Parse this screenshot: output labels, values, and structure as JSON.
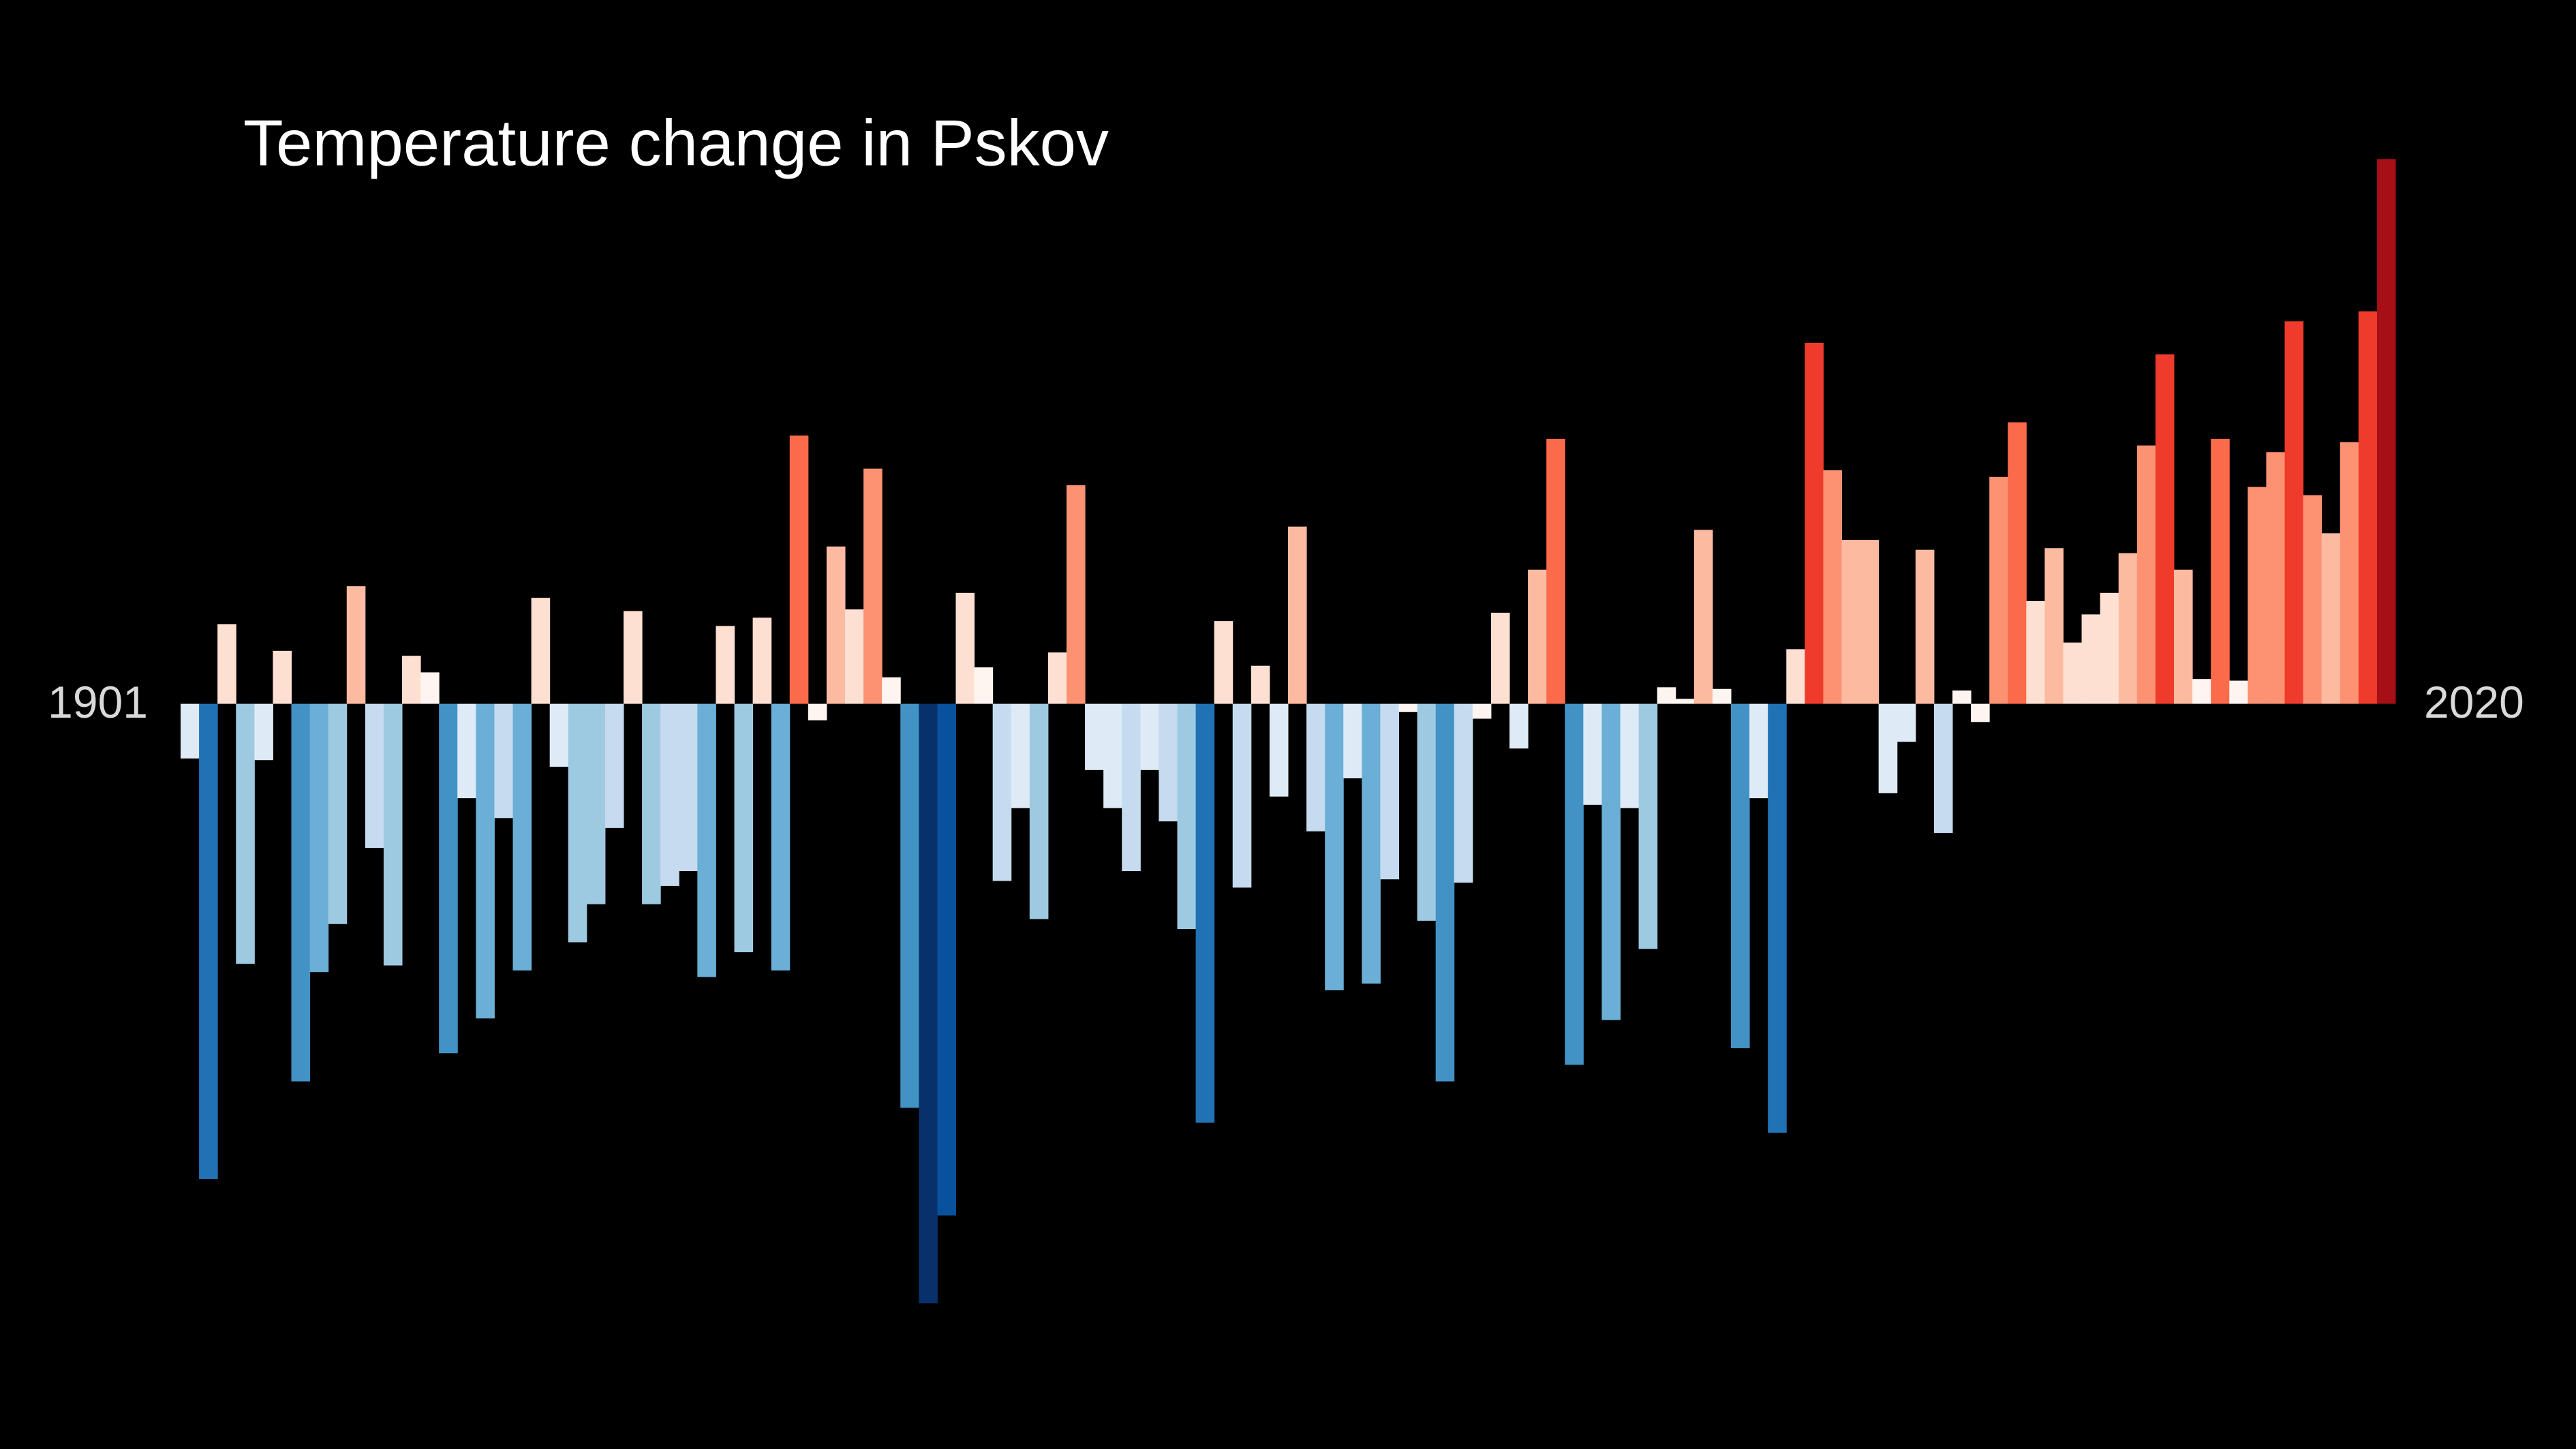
{
  "chart_data": {
    "type": "bar",
    "title": "Temperature change in Pskov",
    "categories": [
      "1901",
      null,
      null,
      null,
      null,
      null,
      null,
      null,
      null,
      null,
      null,
      null,
      null,
      null,
      null,
      null,
      null,
      null,
      null,
      null,
      null,
      null,
      null,
      null,
      null,
      null,
      null,
      null,
      null,
      null,
      null,
      null,
      null,
      null,
      null,
      null,
      null,
      null,
      null,
      null,
      null,
      null,
      null,
      null,
      null,
      null,
      null,
      null,
      null,
      null,
      null,
      null,
      null,
      null,
      null,
      null,
      null,
      null,
      null,
      null,
      null,
      null,
      null,
      null,
      null,
      null,
      null,
      null,
      null,
      null,
      null,
      null,
      null,
      null,
      null,
      null,
      null,
      null,
      null,
      null,
      null,
      null,
      null,
      null,
      null,
      null,
      null,
      null,
      null,
      null,
      null,
      null,
      null,
      null,
      null,
      null,
      null,
      null,
      null,
      null,
      null,
      null,
      null,
      null,
      null,
      null,
      null,
      null,
      null,
      null,
      null,
      null,
      null,
      null,
      null,
      null,
      null,
      null,
      null,
      "2020"
    ],
    "values": [
      -0.33,
      -2.87,
      0.48,
      -1.57,
      -0.34,
      0.32,
      -2.28,
      -1.62,
      -1.33,
      0.71,
      -0.87,
      -1.58,
      0.29,
      0.19,
      -2.11,
      -0.57,
      -1.9,
      -0.69,
      -1.61,
      0.64,
      -0.38,
      -1.44,
      -1.21,
      -0.75,
      0.56,
      -1.21,
      -1.1,
      -1.01,
      -1.65,
      0.47,
      -1.5,
      0.52,
      -1.61,
      1.62,
      -0.1,
      0.95,
      0.57,
      1.42,
      0.16,
      -2.44,
      -3.62,
      -3.09,
      0.67,
      0.22,
      -1.07,
      -0.63,
      -1.3,
      0.31,
      1.32,
      -0.4,
      -0.63,
      -1.01,
      -0.4,
      -0.71,
      -1.36,
      -2.53,
      0.5,
      -1.11,
      0.23,
      -0.56,
      1.07,
      -0.77,
      -1.73,
      -0.45,
      -1.69,
      -1.06,
      -0.05,
      -1.31,
      -2.28,
      -1.08,
      -0.09,
      0.55,
      -0.27,
      0.81,
      1.6,
      -2.18,
      -0.61,
      -1.91,
      -0.63,
      -1.48,
      0.1,
      0.03,
      1.05,
      0.09,
      -2.08,
      -0.57,
      -2.59,
      0.33,
      2.18,
      1.41,
      0.99,
      0.99,
      -0.54,
      -0.23,
      0.93,
      -0.78,
      0.08,
      -0.11,
      1.37,
      1.7,
      0.62,
      0.94,
      0.37,
      0.54,
      0.67,
      0.91,
      1.56,
      2.11,
      0.81,
      0.15,
      1.6,
      0.14,
      1.31,
      1.52,
      2.31,
      1.26,
      1.03,
      1.58,
      2.37,
      3.29
    ],
    "colorscale": [
      "#08306b",
      "#08519c",
      "#2171b5",
      "#4292c6",
      "#6baed6",
      "#9ecae1",
      "#c6dbef",
      "#deebf7",
      "#fff5f0",
      "#fee0d2",
      "#fcbba1",
      "#fc9272",
      "#fb6a4a",
      "#ef3b2c",
      "#cb181d",
      "#a50f15",
      "#67000d"
    ],
    "ylim": [
      -4.5,
      4.25
    ]
  }
}
